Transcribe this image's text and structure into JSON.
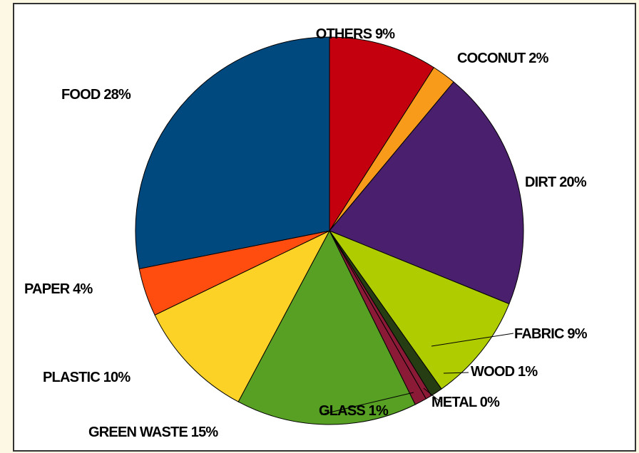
{
  "chart_data": {
    "type": "pie",
    "title": "",
    "categories": [
      "OTHERS",
      "COCONUT",
      "DIRT",
      "FABRIC",
      "WOOD",
      "METAL",
      "GLASS",
      "GREEN WASTE",
      "PLASTIC",
      "PAPER",
      "FOOD"
    ],
    "values": [
      9,
      2,
      20,
      9,
      1,
      0.5,
      1,
      15,
      10,
      4,
      28
    ],
    "display_labels": [
      "OTHERS 9%",
      "COCONUT 2%",
      "DIRT 20%",
      "FABRIC 9%",
      "WOOD 1%",
      "METAL 0%",
      "GLASS 1%",
      "GREEN WASTE 15%",
      "PLASTIC 10%",
      "PAPER 4%",
      "FOOD 28%"
    ],
    "colors": [
      "#C4000F",
      "#F99B1A",
      "#4A1F6E",
      "#AECC00",
      "#263C12",
      "#8B1A36",
      "#8B1A36",
      "#57A023",
      "#FDD227",
      "#FF4D10",
      "#00497F"
    ],
    "legend": "none"
  }
}
